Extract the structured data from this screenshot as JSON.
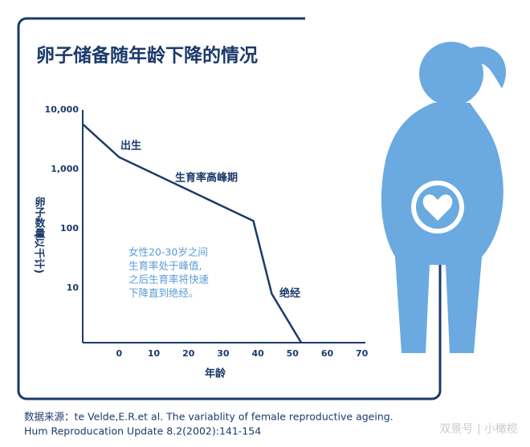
{
  "chart_data": {
    "type": "line",
    "title": "卵子储备随年龄下降的情况",
    "x_label": "年龄",
    "y_label": [
      "卵子数量",
      "(以千计)"
    ],
    "x": [
      -10.4,
      0,
      38.7,
      44,
      52.5
    ],
    "series": [
      {
        "name": "卵子数量",
        "color": "#1b3a6b",
        "values": [
          5700,
          1600,
          135,
          8,
          1.2
        ]
      }
    ],
    "xlim": [
      -10.5,
      71
    ],
    "xticks": [
      0,
      10,
      20,
      30,
      40,
      50,
      60,
      70
    ],
    "ylim": [
      1.2,
      10000
    ],
    "log_y": true,
    "yticks": [
      {
        "value": 10000,
        "label": "10,000"
      },
      {
        "value": 1000,
        "label": "1,000"
      },
      100,
      10
    ],
    "annotations": [
      "出生",
      "生育率高峰期",
      "绝经"
    ],
    "note": [
      "女性20-30岁之间",
      "生育率处于峰值,",
      "之后生育率将快速",
      "下降直到绝经。"
    ],
    "source": [
      "数据来源：te Velde,E.R.et al. The variablity of female reproductive ageing.",
      "Hum Reproducation Update 8.2(2002):141-154"
    ],
    "watermark": "双景号 | 小橄榄"
  }
}
